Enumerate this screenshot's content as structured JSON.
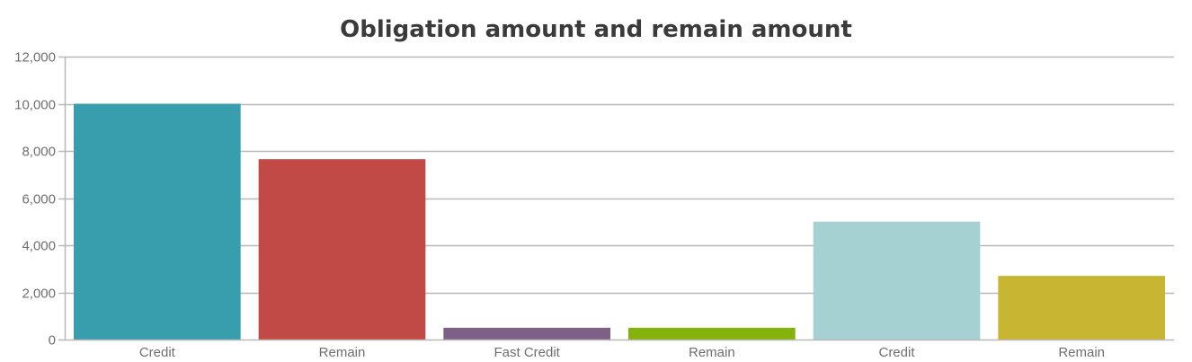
{
  "chart_data": {
    "type": "bar",
    "title": "Obligation amount and remain amount",
    "categories": [
      "Credit",
      "Remain",
      "Fast Credit",
      "Remain",
      "Credit",
      "Remain"
    ],
    "values": [
      10000,
      7650,
      500,
      500,
      5000,
      2700
    ],
    "colors": [
      "#389eae",
      "#c24a46",
      "#7e5f85",
      "#86b20c",
      "#a5d1d2",
      "#c8b632"
    ],
    "ylim": [
      0,
      12000
    ],
    "yticks": [
      0,
      2000,
      4000,
      6000,
      8000,
      10000,
      12000
    ],
    "ytick_labels": [
      "0",
      "2,000",
      "4,000",
      "6,000",
      "8,000",
      "10,000",
      "12,000"
    ],
    "xlabel": "",
    "ylabel": "",
    "grid": true,
    "legend": "none"
  }
}
